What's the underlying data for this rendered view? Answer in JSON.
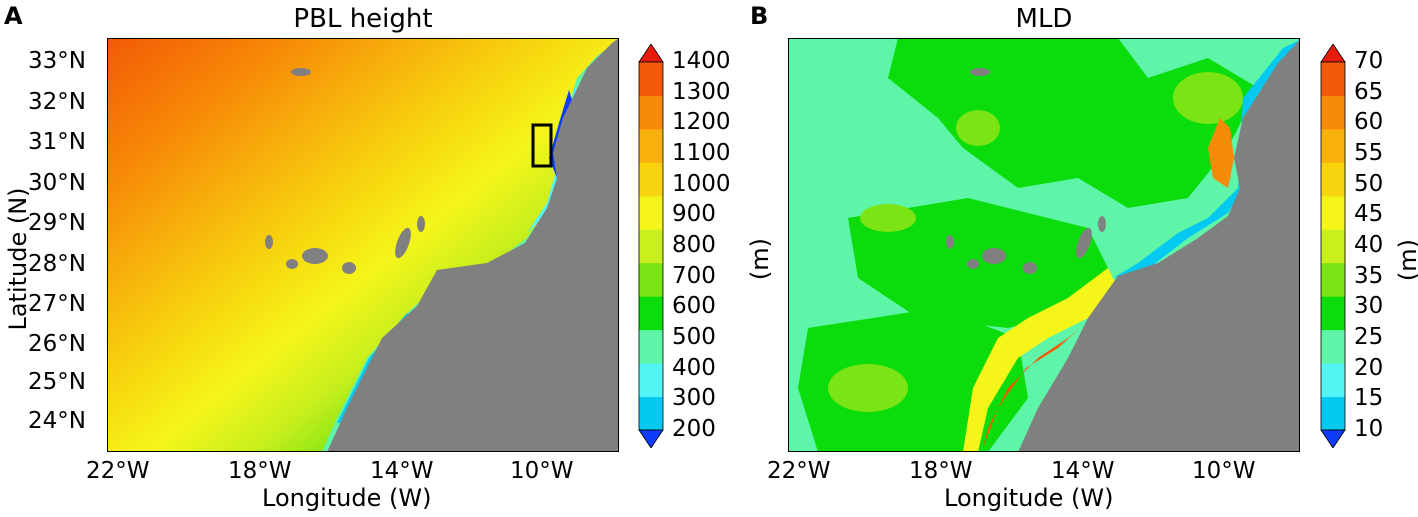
{
  "panels": [
    {
      "letter": "A",
      "title": "PBL height",
      "xlabel": "Longitude (W)",
      "ylabel": "Latitude (N)",
      "xticks": [
        "22°W",
        "18°W",
        "14°W",
        "10°W"
      ],
      "yticks": [
        "33°N",
        "32°N",
        "31°N",
        "30°N",
        "29°N",
        "28°N",
        "27°N",
        "26°N",
        "25°N",
        "24°N"
      ],
      "colorbar": {
        "levels": [
          "200",
          "300",
          "400",
          "500",
          "600",
          "700",
          "800",
          "900",
          "1000",
          "1100",
          "1200",
          "1300",
          "1400"
        ],
        "colors": [
          "#0d3dfa",
          "#06c9f2",
          "#52f4f4",
          "#5ff5a8",
          "#0bdc0b",
          "#7ae414",
          "#c9ef1d",
          "#f5f51a",
          "#f7d40e",
          "#f7b00c",
          "#f78a07",
          "#f25a07",
          "#e61b0e"
        ],
        "extend": "both",
        "unit": ""
      }
    },
    {
      "letter": "B",
      "title": "MLD",
      "xlabel": "Longitude (W)",
      "ylabel": "(m)",
      "xticks": [
        "22°W",
        "18°W",
        "14°W",
        "10°W"
      ],
      "yticks": [],
      "colorbar": {
        "levels": [
          "10",
          "15",
          "20",
          "25",
          "30",
          "35",
          "40",
          "45",
          "50",
          "55",
          "60",
          "65",
          "70"
        ],
        "colors": [
          "#0d3dfa",
          "#06c9f2",
          "#52f4f4",
          "#5ff5a8",
          "#0bdc0b",
          "#7ae414",
          "#c9ef1d",
          "#f5f51a",
          "#f7d40e",
          "#f7b00c",
          "#f78a07",
          "#f25a07",
          "#e61b0e"
        ],
        "extend": "both",
        "unit": "(m)"
      }
    }
  ],
  "colors": {
    "land": "#808080",
    "box": "#000000"
  }
}
